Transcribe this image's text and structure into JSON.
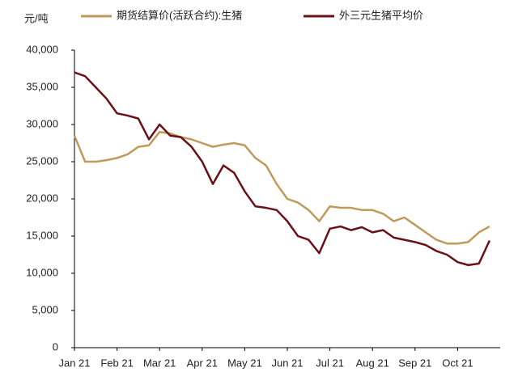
{
  "chart_data": {
    "type": "line",
    "y_label": "元/吨",
    "categories": [
      "Jan 21",
      null,
      null,
      null,
      "Feb 21",
      null,
      null,
      null,
      "Mar 21",
      null,
      null,
      null,
      "Apr 21",
      null,
      null,
      null,
      "May 21",
      null,
      null,
      null,
      "Jun 21",
      null,
      null,
      null,
      "Jul 21",
      null,
      null,
      null,
      "Aug 21",
      null,
      null,
      null,
      "Sep 21",
      null,
      null,
      null,
      "Oct 21",
      null,
      null,
      null
    ],
    "series": [
      {
        "name": "期货结算价(活跃合约):生猪",
        "color": "#c09a5b",
        "values": [
          28500,
          25000,
          25000,
          25200,
          25500,
          26000,
          27000,
          27200,
          29000,
          28800,
          28300,
          28000,
          27500,
          27000,
          27300,
          27500,
          27200,
          25500,
          24500,
          22000,
          20000,
          19500,
          18500,
          17000,
          19000,
          18800,
          18800,
          18500,
          18500,
          18000,
          17000,
          17500,
          16500,
          15500,
          14500,
          14000,
          14000,
          14200,
          15500,
          16300
        ]
      },
      {
        "name": "外三元生猪平均价",
        "color": "#6b1016",
        "values": [
          37000,
          36500,
          35000,
          33500,
          31500,
          31200,
          30800,
          28000,
          30000,
          28500,
          28300,
          27000,
          25000,
          22000,
          24500,
          23500,
          21000,
          19000,
          18800,
          18500,
          17000,
          15000,
          14500,
          12700,
          16000,
          16300,
          15800,
          16200,
          15500,
          15800,
          14800,
          14500,
          14200,
          13800,
          13000,
          12500,
          11500,
          11100,
          11300,
          14400
        ]
      }
    ],
    "ylim": [
      0,
      40000
    ],
    "yticks": [
      0,
      {
        "value": 5000,
        "label": "5,000"
      },
      {
        "value": 10000,
        "label": "10,000"
      },
      {
        "value": 15000,
        "label": "15,000"
      },
      {
        "value": 20000,
        "label": "20,000"
      },
      {
        "value": 25000,
        "label": "25,000"
      },
      {
        "value": 30000,
        "label": "30,000"
      },
      {
        "value": 35000,
        "label": "35,000"
      },
      {
        "value": 40000,
        "label": "40,000"
      }
    ],
    "grid": false
  }
}
